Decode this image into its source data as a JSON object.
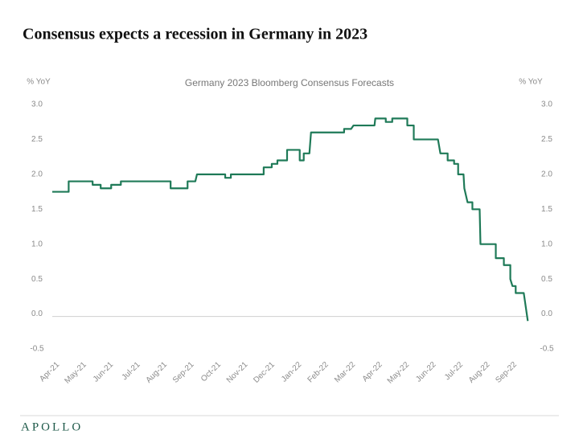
{
  "chart_data": {
    "type": "line",
    "title": "Consensus expects a recession in Germany in 2023",
    "subtitle": "Germany 2023 Bloomberg Consensus Forecasts",
    "y_label": "% YoY",
    "y2_label": "% YoY",
    "source": "APOLLO",
    "color": "#1f7a58",
    "xlim": [
      -0.1,
      17.6
    ],
    "xticks": [
      {
        "value": 0,
        "label": "Apr-21"
      },
      {
        "value": 1,
        "label": "May-21"
      },
      {
        "value": 2,
        "label": "Jun-21"
      },
      {
        "value": 3,
        "label": "Jul-21"
      },
      {
        "value": 4,
        "label": "Aug-21"
      },
      {
        "value": 5,
        "label": "Sep-21"
      },
      {
        "value": 6,
        "label": "Oct-21"
      },
      {
        "value": 7,
        "label": "Nov-21"
      },
      {
        "value": 8,
        "label": "Dec-21"
      },
      {
        "value": 9,
        "label": "Jan-22"
      },
      {
        "value": 10,
        "label": "Feb-22"
      },
      {
        "value": 11,
        "label": "Mar-22"
      },
      {
        "value": 12,
        "label": "Apr-22"
      },
      {
        "value": 13,
        "label": "May-22"
      },
      {
        "value": 14,
        "label": "Jun-22"
      },
      {
        "value": 15,
        "label": "Jul-22"
      },
      {
        "value": 16,
        "label": "Aug-22"
      },
      {
        "value": 17,
        "label": "Sep-22"
      }
    ],
    "ylim": [
      -0.5,
      3.0
    ],
    "yticks": [
      {
        "value": 3,
        "label": "3.0"
      },
      2.5,
      {
        "value": 2,
        "label": "2.0"
      },
      1.5,
      {
        "value": 1,
        "label": "1.0"
      },
      0.5,
      {
        "value": 0,
        "label": "0.0"
      },
      -0.5
    ],
    "x": [
      -0.1,
      0.51,
      0.51,
      1.4,
      1.4,
      1.7,
      1.7,
      2.09,
      2.09,
      2.45,
      2.45,
      4.3,
      4.3,
      4.93,
      4.93,
      5.22,
      5.28,
      6.33,
      6.33,
      6.54,
      6.54,
      7.76,
      7.76,
      8.06,
      8.06,
      8.27,
      8.27,
      8.63,
      8.63,
      9.1,
      9.1,
      9.25,
      9.25,
      9.46,
      9.52,
      10.75,
      10.75,
      11.01,
      11.1,
      11.88,
      11.91,
      12.3,
      12.3,
      12.54,
      12.54,
      13.1,
      13.1,
      13.34,
      13.34,
      14.24,
      14.33,
      14.6,
      14.6,
      14.84,
      14.84,
      14.99,
      14.99,
      15.19,
      15.22,
      15.34,
      15.52,
      15.52,
      15.79,
      15.82,
      16.39,
      16.39,
      16.69,
      16.69,
      16.93,
      16.93,
      17.01,
      17.13,
      17.13,
      17.43,
      17.58
    ],
    "values": [
      1.75,
      1.75,
      1.9,
      1.9,
      1.85,
      1.85,
      1.8,
      1.8,
      1.85,
      1.85,
      1.9,
      1.9,
      1.8,
      1.8,
      1.9,
      1.9,
      2.0,
      2.0,
      1.95,
      1.95,
      2.0,
      2.0,
      2.1,
      2.1,
      2.15,
      2.15,
      2.2,
      2.2,
      2.35,
      2.35,
      2.2,
      2.2,
      2.3,
      2.3,
      2.6,
      2.6,
      2.65,
      2.65,
      2.7,
      2.7,
      2.8,
      2.8,
      2.75,
      2.75,
      2.8,
      2.8,
      2.7,
      2.7,
      2.5,
      2.5,
      2.3,
      2.3,
      2.2,
      2.2,
      2.15,
      2.15,
      2.0,
      2.0,
      1.8,
      1.6,
      1.6,
      1.5,
      1.5,
      1.0,
      1.0,
      0.8,
      0.8,
      0.7,
      0.7,
      0.5,
      0.4,
      0.4,
      0.3,
      0.3,
      -0.1
    ]
  }
}
